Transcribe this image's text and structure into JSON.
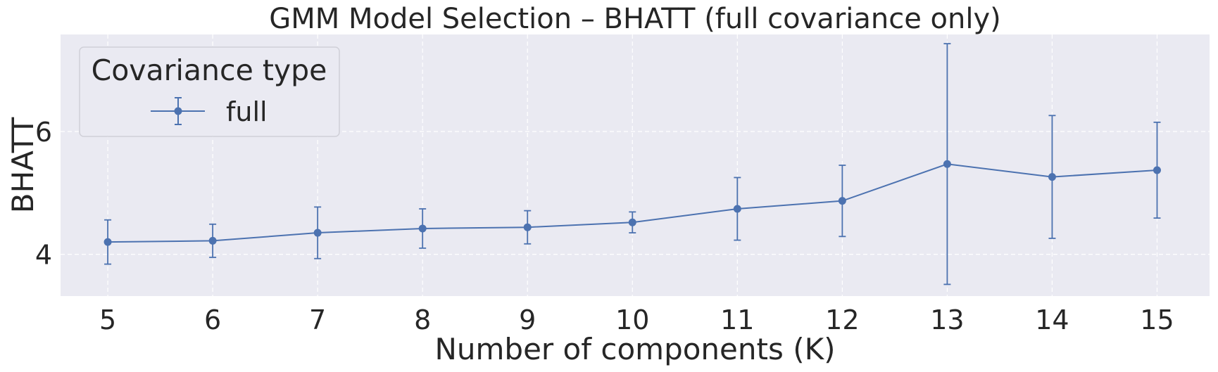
{
  "chart_data": {
    "type": "line",
    "title": "GMM Model Selection – BHATT (full covariance only)",
    "xlabel": "Number of components (K)",
    "ylabel": "BHATT",
    "x": [
      5,
      6,
      7,
      8,
      9,
      10,
      11,
      12,
      13,
      14,
      15
    ],
    "x_ticks": [
      "5",
      "6",
      "7",
      "8",
      "9",
      "10",
      "11",
      "12",
      "13",
      "14",
      "15"
    ],
    "y_ticks": [
      4,
      6
    ],
    "y_tick_labels": [
      "4",
      "6"
    ],
    "xlim": [
      4.55,
      15.5
    ],
    "ylim": [
      3.32,
      7.58
    ],
    "grid": true,
    "grid_style": "dashed",
    "background": "#eaeaf2",
    "legend": {
      "title": "Covariance type",
      "placement": "top-left",
      "entries": [
        "full"
      ]
    },
    "series": [
      {
        "name": "full",
        "color": "#4c72b0",
        "marker": "circle",
        "values": [
          4.2,
          4.22,
          4.35,
          4.42,
          4.44,
          4.52,
          4.74,
          4.87,
          5.47,
          5.26,
          5.37
        ],
        "error": [
          0.36,
          0.27,
          0.42,
          0.32,
          0.27,
          0.17,
          0.51,
          0.58,
          1.96,
          1.0,
          0.78
        ]
      }
    ]
  }
}
